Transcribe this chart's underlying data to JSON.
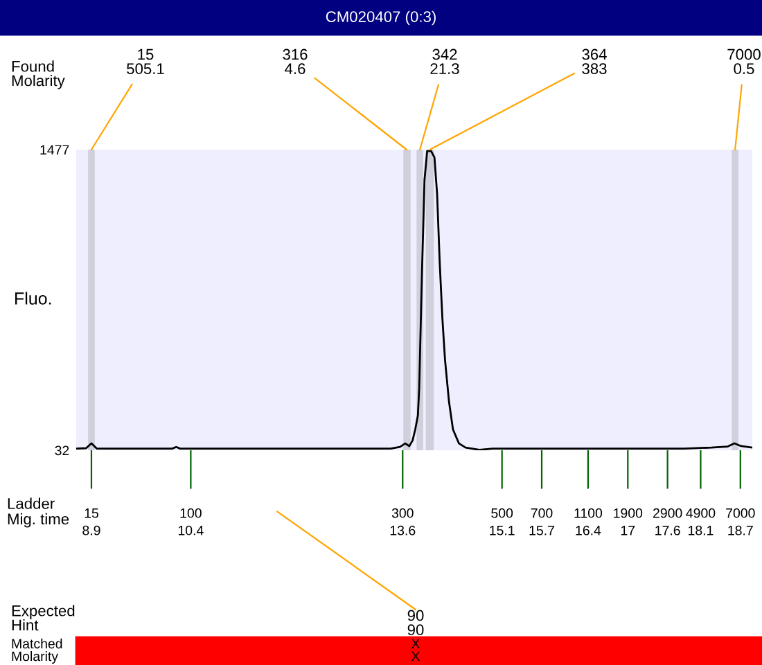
{
  "chart_data": {
    "type": "line",
    "title": "CM020407 (0:3)",
    "ylabel": "Fluo.",
    "xlabel": "Ladder\nMig. time",
    "x": [
      8.67,
      8.82,
      8.9,
      8.98,
      10.12,
      10.18,
      10.24,
      13.42,
      13.56,
      13.64,
      13.7,
      13.75,
      13.79,
      13.83,
      13.85,
      13.89,
      13.93,
      13.97,
      14.03,
      14.08,
      14.12,
      14.16,
      14.2,
      14.24,
      14.3,
      14.36,
      14.45,
      14.55,
      14.76,
      14.96,
      17.85,
      18.26,
      18.51,
      18.61,
      18.71,
      18.88
    ],
    "series": [
      {
        "color": "#000000",
        "values": [
          40,
          42,
          65,
          40,
          40,
          48,
          40,
          40,
          48,
          65,
          52,
          79,
          132,
          199,
          332,
          865,
          1331,
          1470,
          1470,
          1440,
          1264,
          931,
          665,
          465,
          265,
          132,
          65,
          45,
          34,
          40,
          40,
          45,
          50,
          65,
          52,
          45
        ]
      }
    ],
    "ylim": [
      32,
      1477
    ],
    "yticks": [
      32,
      1477
    ],
    "xlim": [
      8.67,
      18.88
    ],
    "xticks": [
      8.9,
      10.4,
      13.6,
      15.1,
      15.7,
      16.4,
      17,
      17.6,
      18.1,
      18.7
    ],
    "bands": [
      {
        "axis": "x",
        "from": 8.85,
        "to": 8.95,
        "color": "#d0d0dc"
      },
      {
        "axis": "x",
        "from": 13.61,
        "to": 13.72,
        "color": "#d0d0dc"
      },
      {
        "axis": "x",
        "from": 13.81,
        "to": 13.91,
        "color": "#d0d0dc"
      },
      {
        "axis": "x",
        "from": 13.95,
        "to": 14.07,
        "color": "#d0d0dc"
      },
      {
        "axis": "x",
        "from": 18.57,
        "to": 18.67,
        "color": "#d0d0dc"
      }
    ],
    "annotations": [
      "Found\nMolarity",
      {
        "text": "15\n505.1",
        "x": 8.9,
        "y": 1477
      },
      {
        "text": "316\n4.6",
        "x": 13.66,
        "y": 1477
      },
      {
        "text": "342\n21.3",
        "x": 13.86,
        "y": 1477
      },
      {
        "text": "364\n383",
        "x": 14.01,
        "y": 1477
      },
      {
        "text": "7000\n0.5",
        "x": 18.62,
        "y": 1477
      },
      "Expected\nHint",
      "90\n90",
      "Matched\nMolarity",
      "X\nX",
      "15",
      "100",
      "300",
      "500",
      "700",
      "1100",
      "1900",
      "2900",
      "4900",
      "7000"
    ],
    "grid": false,
    "legend": false,
    "marker": "none",
    "line_style": "solid"
  }
}
